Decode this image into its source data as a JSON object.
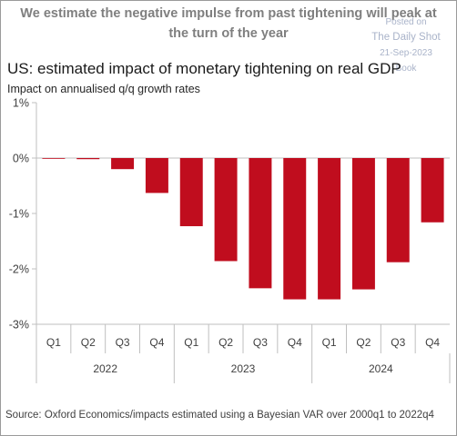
{
  "headline": "We estimate the negative impulse from past tightening will peak at the turn of the year",
  "watermark": {
    "posted_on": "Posted on",
    "site": "The Daily Shot",
    "date": "21-Sep-2023",
    "extra": "Book"
  },
  "source": "Source: Oxford Economics/impacts estimated using a Bayesian VAR over 2000q1 to 2022q4",
  "colors": {
    "bar": "#c00d1e",
    "axis": "#bfbfbf",
    "text": "#404040"
  },
  "chart_data": {
    "type": "bar",
    "title": "US: estimated impact of monetary tightening on real GDP",
    "ylabel": "Impact on annualised q/q growth rates",
    "xlabel": "",
    "categories": [
      "Q1",
      "Q2",
      "Q3",
      "Q4",
      "Q1",
      "Q2",
      "Q3",
      "Q4",
      "Q1",
      "Q2",
      "Q3",
      "Q4"
    ],
    "year_groups": [
      {
        "label": "2022",
        "count": 4
      },
      {
        "label": "2023",
        "count": 4
      },
      {
        "label": "2024",
        "count": 4
      }
    ],
    "values": [
      0,
      -0.02,
      -0.2,
      -0.63,
      -1.23,
      -1.86,
      -2.35,
      -2.55,
      -2.55,
      -2.37,
      -1.88,
      -1.16
    ],
    "ylim": [
      -3,
      1
    ],
    "yticks": [
      1,
      0,
      -1,
      -2,
      -3
    ],
    "ytick_labels": [
      "1%",
      "0%",
      "-1%",
      "-2%",
      "-3%"
    ],
    "grid": false,
    "legend": "none"
  }
}
